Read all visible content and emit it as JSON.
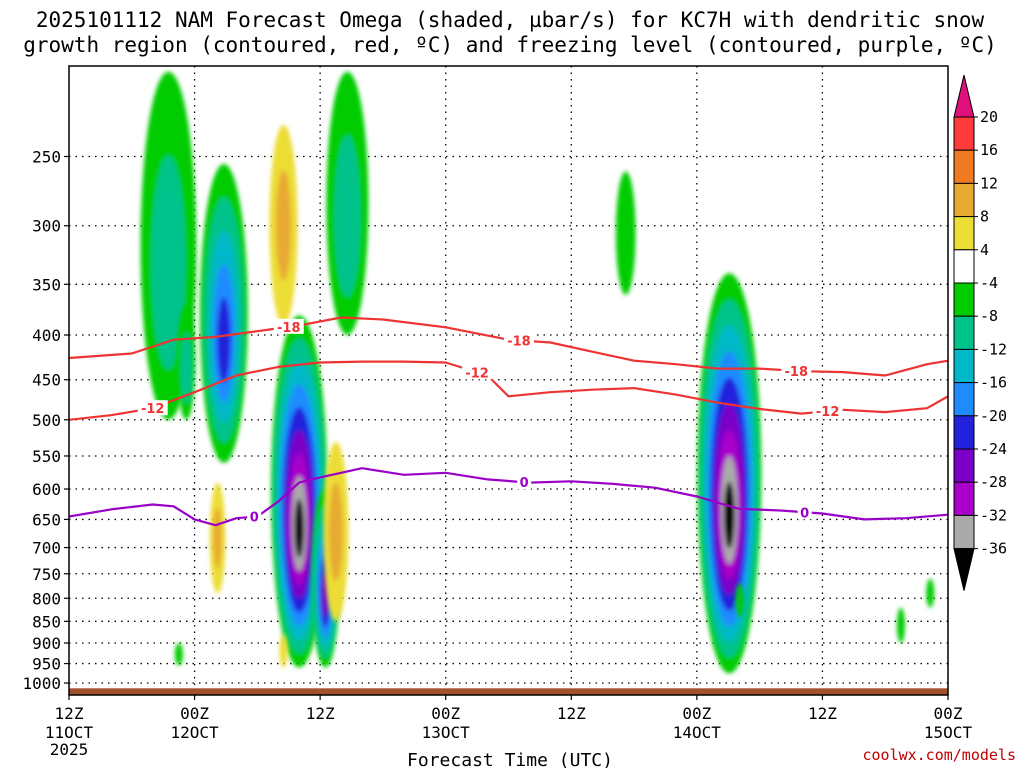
{
  "chart_data": {
    "type": "heatmap",
    "title_lines": [
      "2025101112 NAM Forecast Omega (shaded, µbar/s) for KC7H with dendritic snow",
      "growth region (contoured, red, ºC) and freezing level (contoured, purple, ºC)"
    ],
    "xlabel": "Forecast Time (UTC)",
    "credit": "coolwx.com/models",
    "x_ticks": [
      {
        "hour": 0,
        "l1": "12Z",
        "l2": "11OCT",
        "l3": "2025"
      },
      {
        "hour": 12,
        "l1": "00Z",
        "l2": "12OCT",
        "l3": ""
      },
      {
        "hour": 24,
        "l1": "12Z",
        "l2": "",
        "l3": ""
      },
      {
        "hour": 36,
        "l1": "00Z",
        "l2": "13OCT",
        "l3": ""
      },
      {
        "hour": 48,
        "l1": "12Z",
        "l2": "",
        "l3": ""
      },
      {
        "hour": 60,
        "l1": "00Z",
        "l2": "14OCT",
        "l3": ""
      },
      {
        "hour": 72,
        "l1": "12Z",
        "l2": "",
        "l3": ""
      },
      {
        "hour": 84,
        "l1": "00Z",
        "l2": "15OCT",
        "l3": ""
      }
    ],
    "x_range": [
      0,
      84
    ],
    "y_ticks": [
      250,
      300,
      350,
      400,
      450,
      500,
      550,
      600,
      650,
      700,
      750,
      800,
      850,
      900,
      950,
      1000
    ],
    "y_range_hpa": [
      197,
      1032
    ],
    "colorbar": {
      "labels": [
        "20",
        "16",
        "12",
        "8",
        "4",
        "-4",
        "-8",
        "-12",
        "-16",
        "-20",
        "-24",
        "-28",
        "-32",
        "-36"
      ],
      "colors": [
        "#e0107a",
        "#ff3a3a",
        "#f07a22",
        "#e8aa30",
        "#ecdd35",
        "#ffffff",
        "#00cc00",
        "#00c38c",
        "#00b8c8",
        "#1e8cff",
        "#2222dd",
        "#7a00c8",
        "#a800c8",
        "#aaaaaa",
        "#000000"
      ]
    },
    "omega_features": [
      {
        "sign": "neg",
        "hour": 9.5,
        "p_top": 200,
        "p_bot": 500,
        "min": -8
      },
      {
        "sign": "neg",
        "hour": 14.8,
        "p_top": 255,
        "p_bot": 560,
        "min": -20
      },
      {
        "sign": "neg",
        "hour": 11.2,
        "p_top": 370,
        "p_bot": 500,
        "min": -8
      },
      {
        "sign": "neg",
        "hour": 22.0,
        "p_top": 380,
        "p_bot": 960,
        "min": -40
      },
      {
        "sign": "neg",
        "hour": 24.5,
        "p_top": 600,
        "p_bot": 960,
        "min": -24
      },
      {
        "sign": "neg",
        "hour": 26.6,
        "p_top": 200,
        "p_bot": 400,
        "min": -8
      },
      {
        "sign": "neg",
        "hour": 53.2,
        "p_top": 260,
        "p_bot": 360,
        "min": -6
      },
      {
        "sign": "neg",
        "hour": 63.1,
        "p_top": 340,
        "p_bot": 975,
        "min": -40
      },
      {
        "sign": "neg",
        "hour": 10.5,
        "p_top": 900,
        "p_bot": 955,
        "min": -6
      },
      {
        "sign": "neg",
        "hour": 64.1,
        "p_top": 770,
        "p_bot": 840,
        "min": -6
      },
      {
        "sign": "neg",
        "hour": 79.5,
        "p_top": 820,
        "p_bot": 900,
        "min": -6
      },
      {
        "sign": "neg",
        "hour": 82.3,
        "p_top": 760,
        "p_bot": 820,
        "min": -6
      },
      {
        "sign": "pos",
        "hour": 20.5,
        "p_top": 230,
        "p_bot": 390,
        "max": 8
      },
      {
        "sign": "pos",
        "hour": 14.2,
        "p_top": 590,
        "p_bot": 790,
        "max": 8
      },
      {
        "sign": "pos",
        "hour": 25.5,
        "p_top": 530,
        "p_bot": 850,
        "max": 8
      },
      {
        "sign": "pos",
        "hour": 20.5,
        "p_top": 880,
        "p_bot": 960,
        "max": 6
      }
    ],
    "contours": [
      {
        "label": "-18",
        "color": "#ee3333",
        "hours": [
          0,
          6,
          10,
          14,
          18,
          22,
          26,
          30,
          36,
          42,
          46,
          50,
          54,
          58,
          62,
          66,
          70,
          74,
          78,
          82,
          84
        ],
        "hpa": [
          425,
          420,
          405,
          402,
          396,
          390,
          382,
          384,
          392,
          405,
          408,
          418,
          428,
          432,
          437,
          437,
          440,
          441,
          445,
          432,
          428
        ],
        "label_hours": [
          21,
          43,
          69.5
        ]
      },
      {
        "label": "-12",
        "color": "#ee3333",
        "hours": [
          0,
          4,
          8,
          12,
          16,
          20,
          24,
          28,
          32,
          36,
          40,
          42,
          46,
          50,
          54,
          58,
          62,
          66,
          70,
          74,
          78,
          82,
          84
        ],
        "hpa": [
          500,
          494,
          485,
          465,
          445,
          435,
          430,
          429,
          429,
          430,
          445,
          470,
          465,
          462,
          460,
          468,
          478,
          486,
          492,
          487,
          490,
          485,
          470
        ],
        "label_hours": [
          8,
          39,
          72.5
        ]
      },
      {
        "label": "0",
        "color": "#9a00c8",
        "hours": [
          0,
          4,
          8,
          10,
          12,
          14,
          16,
          18,
          20,
          22,
          24,
          26,
          28,
          32,
          36,
          40,
          44,
          48,
          52,
          56,
          60,
          64,
          68,
          72,
          76,
          80,
          84
        ],
        "hpa": [
          645,
          633,
          625,
          628,
          650,
          660,
          648,
          645,
          620,
          590,
          582,
          575,
          568,
          578,
          575,
          585,
          590,
          588,
          592,
          598,
          612,
          632,
          635,
          640,
          650,
          648,
          642
        ],
        "label_hours": [
          17.7,
          43.5,
          70.3
        ]
      }
    ],
    "terrain_color": "#a0522d"
  }
}
